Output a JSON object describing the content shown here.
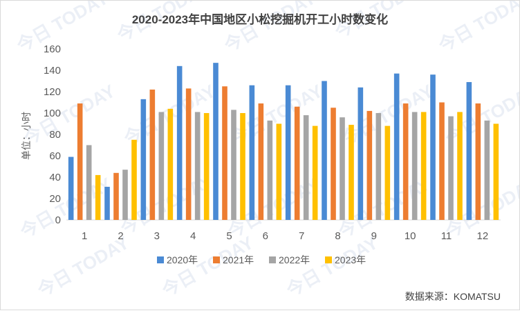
{
  "chart_data": {
    "type": "bar",
    "title": "2020-2023年中国地区小松挖掘机开工小时数变化",
    "ylabel": "单位：小时",
    "xlabel": "",
    "categories": [
      "1",
      "2",
      "3",
      "4",
      "5",
      "6",
      "7",
      "8",
      "9",
      "10",
      "11",
      "12"
    ],
    "ylim": [
      0,
      160
    ],
    "yticks": [
      0,
      20,
      40,
      60,
      80,
      100,
      120,
      140,
      160
    ],
    "grid": false,
    "legend_position": "bottom",
    "series": [
      {
        "name": "2020年",
        "color": "#4a8ad4",
        "values": [
          59,
          31,
          113,
          144,
          147,
          126,
          126,
          130,
          124,
          137,
          136,
          129
        ]
      },
      {
        "name": "2021年",
        "color": "#ed7d31",
        "values": [
          109,
          44,
          122,
          123,
          125,
          109,
          106,
          105,
          102,
          109,
          110,
          109
        ]
      },
      {
        "name": "2022年",
        "color": "#a5a5a5",
        "values": [
          70,
          47,
          101,
          101,
          103,
          93,
          98,
          96,
          100,
          101,
          97,
          93
        ]
      },
      {
        "name": "2023年",
        "color": "#ffc000",
        "values": [
          42,
          75,
          104,
          100,
          100,
          90,
          88,
          89,
          88,
          101,
          101,
          90
        ]
      }
    ]
  },
  "source_text": "数据来源：KOMATSU",
  "watermark": "今日 TODAY"
}
